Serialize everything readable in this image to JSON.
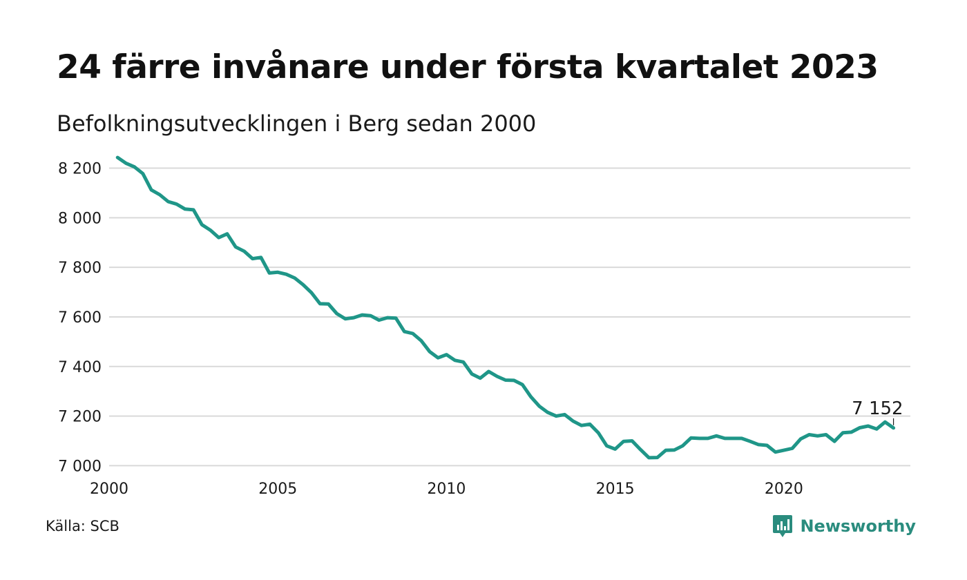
{
  "title": "24 färre invånare under första kvartalet 2023",
  "subtitle": "Befolkningsutvecklingen i Berg sedan 2000",
  "source": "Källa: SCB",
  "brand": {
    "name": "Newsworthy",
    "icon": "newsworthy-logo-icon",
    "color": "#2a8c7e"
  },
  "colors": {
    "line": "#1f9688",
    "grid": "#d9d9d9",
    "text": "#1a1a1a"
  },
  "chart_data": {
    "type": "line",
    "xlabel": "",
    "ylabel": "",
    "xlim": [
      2000,
      2023.75
    ],
    "ylim": [
      6990,
      8260
    ],
    "y_ticks": [
      7000,
      7200,
      7400,
      7600,
      7800,
      8000,
      8200
    ],
    "y_tick_labels": [
      "7 000",
      "7 200",
      "7 400",
      "7 600",
      "7 800",
      "8 000",
      "8 200"
    ],
    "x_ticks": [
      2000,
      2005,
      2010,
      2015,
      2020
    ],
    "x_tick_labels": [
      "2000",
      "2005",
      "2010",
      "2015",
      "2020"
    ],
    "grid": true,
    "x": [
      2000.25,
      2000.5,
      2000.75,
      2001.0,
      2001.25,
      2001.5,
      2001.75,
      2002.0,
      2002.25,
      2002.5,
      2002.75,
      2003.0,
      2003.25,
      2003.5,
      2003.75,
      2004.0,
      2004.25,
      2004.5,
      2004.75,
      2005.0,
      2005.25,
      2005.5,
      2005.75,
      2006.0,
      2006.25,
      2006.5,
      2006.75,
      2007.0,
      2007.25,
      2007.5,
      2007.75,
      2008.0,
      2008.25,
      2008.5,
      2008.75,
      2009.0,
      2009.25,
      2009.5,
      2009.75,
      2010.0,
      2010.25,
      2010.5,
      2010.75,
      2011.0,
      2011.25,
      2011.5,
      2011.75,
      2012.0,
      2012.25,
      2012.5,
      2012.75,
      2013.0,
      2013.25,
      2013.5,
      2013.75,
      2014.0,
      2014.25,
      2014.5,
      2014.75,
      2015.0,
      2015.25,
      2015.5,
      2015.75,
      2016.0,
      2016.25,
      2016.5,
      2016.75,
      2017.0,
      2017.25,
      2017.5,
      2017.75,
      2018.0,
      2018.25,
      2018.5,
      2018.75,
      2019.0,
      2019.25,
      2019.5,
      2019.75,
      2020.0,
      2020.25,
      2020.5,
      2020.75,
      2021.0,
      2021.25,
      2021.5,
      2021.75,
      2022.0,
      2022.25,
      2022.5,
      2022.75,
      2023.0,
      2023.25
    ],
    "series": [
      {
        "values": [
          8243,
          8220,
          8205,
          8178,
          8112,
          8093,
          8065,
          8055,
          8035,
          8032,
          7972,
          7950,
          7920,
          7935,
          7882,
          7865,
          7835,
          7840,
          7777,
          7780,
          7772,
          7757,
          7730,
          7697,
          7653,
          7652,
          7613,
          7592,
          7597,
          7608,
          7605,
          7587,
          7597,
          7595,
          7541,
          7533,
          7504,
          7460,
          7435,
          7448,
          7425,
          7418,
          7370,
          7353,
          7380,
          7360,
          7345,
          7344,
          7327,
          7278,
          7240,
          7215,
          7200,
          7206,
          7180,
          7162,
          7167,
          7133,
          7080,
          7067,
          7098,
          7100,
          7065,
          7032,
          7033,
          7062,
          7063,
          7080,
          7112,
          7110,
          7110,
          7120,
          7110,
          7110,
          7110,
          7098,
          7085,
          7082,
          7055,
          7062,
          7070,
          7108,
          7125,
          7120,
          7125,
          7098,
          7133,
          7135,
          7153,
          7160,
          7148,
          7176,
          7152
        ]
      }
    ],
    "annotations": [
      {
        "x": 2023.25,
        "y": 7152,
        "text": "7 152"
      }
    ]
  }
}
